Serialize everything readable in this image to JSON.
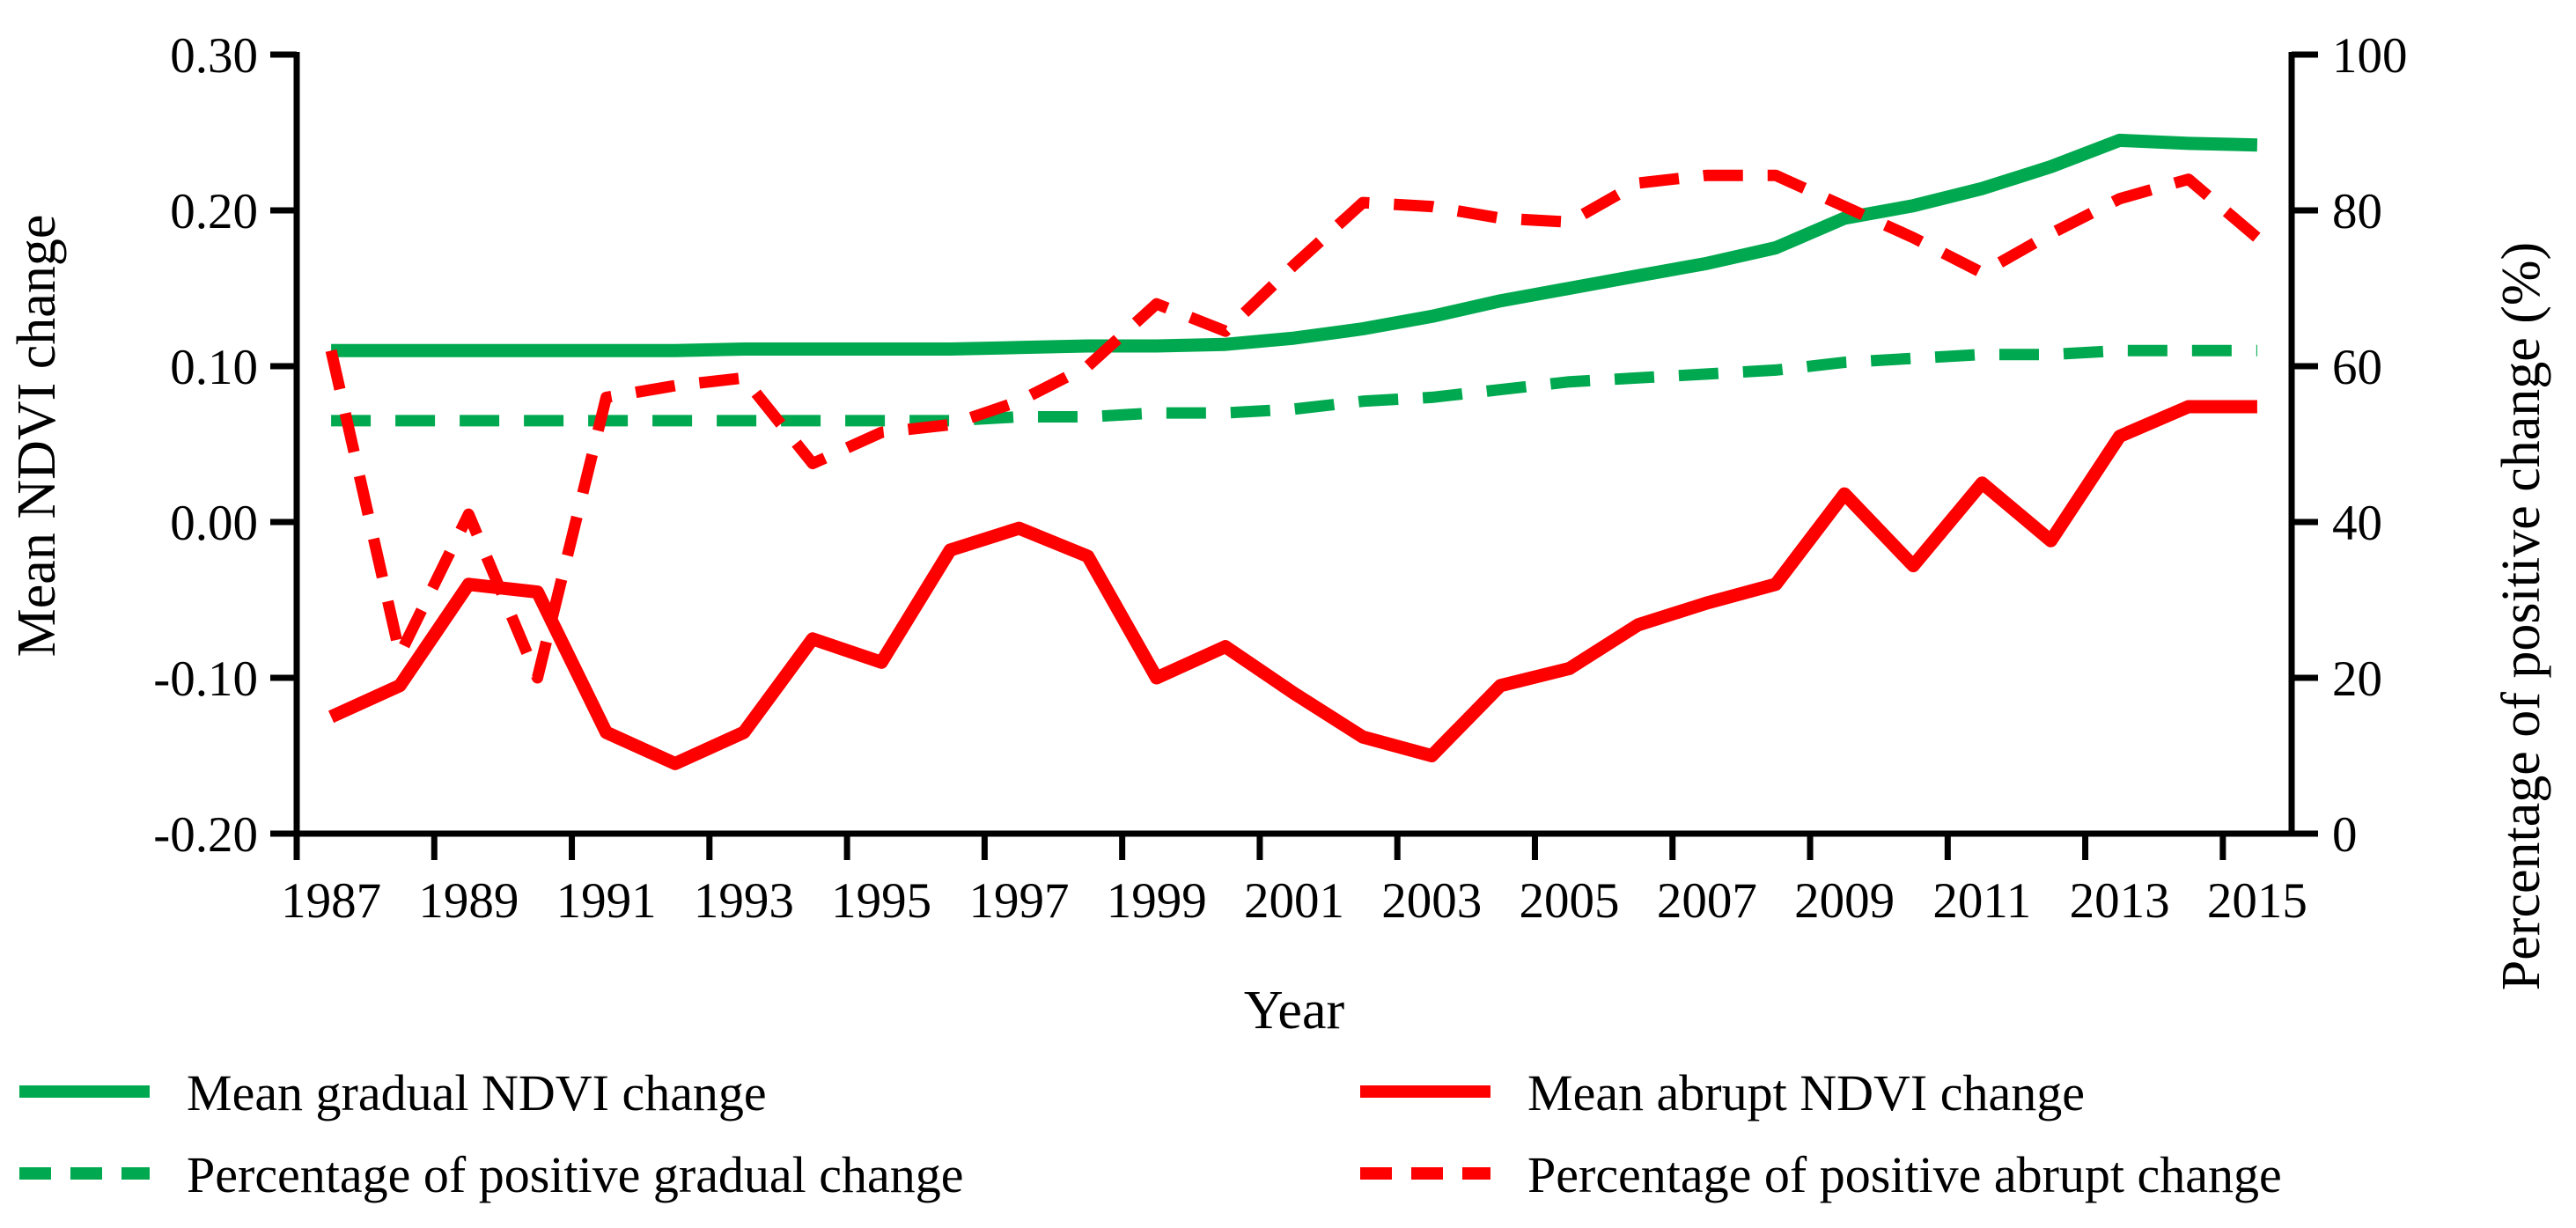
{
  "figure": {
    "background": "#ffffff",
    "axis_color": "#000000"
  },
  "chart_data": {
    "type": "line",
    "title": "",
    "xlabel": "Year",
    "ylabel_left": "Mean NDVI change",
    "ylabel_right": "Percentage of positive change (%)",
    "grid": false,
    "legend_position": "bottom",
    "x": [
      1987,
      1988,
      1989,
      1990,
      1991,
      1992,
      1993,
      1994,
      1995,
      1996,
      1997,
      1998,
      1999,
      2000,
      2001,
      2002,
      2003,
      2004,
      2005,
      2006,
      2007,
      2008,
      2009,
      2010,
      2011,
      2012,
      2013,
      2014,
      2015
    ],
    "x_tick_labels": [
      "1987",
      "1989",
      "1991",
      "1993",
      "1995",
      "1997",
      "1999",
      "2001",
      "2003",
      "2005",
      "2007",
      "2009",
      "2011",
      "2013",
      "2015"
    ],
    "ylim_left": [
      -0.2,
      0.3
    ],
    "yticks_left": [
      "0.30",
      "0.20",
      "0.10",
      "0.00",
      "-0.10",
      "-0.20"
    ],
    "ylim_right": [
      0,
      100
    ],
    "yticks_right": [
      "100",
      "80",
      "60",
      "40",
      "20",
      "0"
    ],
    "series": [
      {
        "name": "Mean gradual NDVI change",
        "axis": "left",
        "style": "solid",
        "color": "#00A94F",
        "values": [
          0.11,
          0.11,
          0.11,
          0.11,
          0.11,
          0.11,
          0.111,
          0.111,
          0.111,
          0.111,
          0.112,
          0.113,
          0.113,
          0.114,
          0.118,
          0.124,
          0.132,
          0.142,
          0.15,
          0.158,
          0.166,
          0.176,
          0.195,
          0.203,
          0.214,
          0.228,
          0.245,
          0.243,
          0.242
        ]
      },
      {
        "name": "Mean abrupt NDVI change",
        "axis": "left",
        "style": "solid",
        "color": "#FE0000",
        "values": [
          -0.125,
          -0.105,
          -0.04,
          -0.045,
          -0.135,
          -0.155,
          -0.135,
          -0.075,
          -0.09,
          -0.018,
          -0.004,
          -0.022,
          -0.1,
          -0.08,
          -0.11,
          -0.138,
          -0.15,
          -0.105,
          -0.094,
          -0.066,
          -0.052,
          -0.04,
          0.018,
          -0.028,
          0.025,
          -0.012,
          0.055,
          0.074,
          0.074
        ]
      },
      {
        "name": "Percentage of positive gradual change",
        "axis": "right",
        "style": "dashed",
        "color": "#00A94F",
        "values": [
          53,
          53,
          53,
          53,
          53,
          53,
          53,
          53,
          53,
          53,
          53.5,
          53.5,
          54,
          54,
          54.5,
          55.5,
          56,
          57,
          58,
          58.5,
          59,
          59.5,
          60.5,
          61,
          61.5,
          61.5,
          62,
          62,
          62
        ]
      },
      {
        "name": "Percentage of positive abrupt change",
        "axis": "right",
        "style": "dashed",
        "color": "#FE0000",
        "values": [
          62,
          23,
          41,
          20,
          56,
          57.5,
          58.5,
          47.5,
          51.5,
          52.5,
          55.5,
          60,
          68,
          64.5,
          73,
          81,
          80.5,
          79,
          78.5,
          83.5,
          84.5,
          84.5,
          80.5,
          76.5,
          72,
          77,
          81.5,
          84,
          76.5
        ]
      }
    ]
  },
  "legend": {
    "rows": [
      [
        {
          "label": "Mean gradual NDVI change",
          "style": "solid",
          "color": "#00A94F"
        },
        {
          "label": "Mean abrupt NDVI change",
          "style": "solid",
          "color": "#FE0000"
        }
      ],
      [
        {
          "label": "Percentage of positive gradual change",
          "style": "dashed",
          "color": "#00A94F"
        },
        {
          "label": "Percentage of positive abrupt change",
          "style": "dashed",
          "color": "#FE0000"
        }
      ]
    ]
  }
}
